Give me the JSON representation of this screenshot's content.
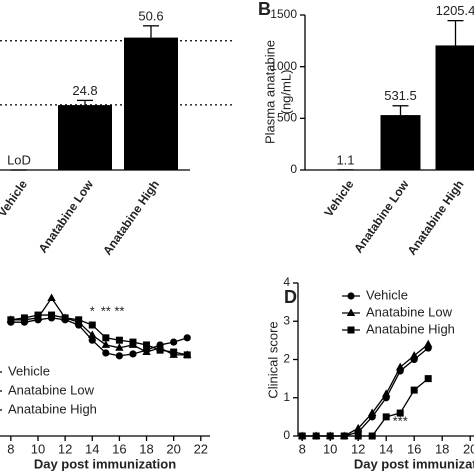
{
  "chart_data": [
    {
      "type": "bar",
      "categories": [
        "Vehicle",
        "Anatabine Low",
        "Anatabine High"
      ],
      "values": [
        0,
        24.8,
        50.6
      ],
      "errors": [
        0,
        1.8,
        4.5
      ],
      "value_labels": [
        "LoD",
        "24.8",
        "50.6"
      ],
      "ylim": [
        0,
        60
      ],
      "reference_lines": [
        49.4,
        24.9
      ],
      "color": "#000000"
    },
    {
      "type": "bar",
      "panel": "B",
      "categories": [
        "Vehicle",
        "Anatabine Low",
        "Anatabine High"
      ],
      "values": [
        1.1,
        531.5,
        1205.4
      ],
      "errors": [
        0.3,
        90,
        240
      ],
      "ylabel": [
        "Plasma anatabine",
        "(ng/mL)"
      ],
      "ylim": [
        0,
        1500
      ],
      "yticks": [
        0,
        500,
        1000,
        1500
      ],
      "color": "#000000"
    },
    {
      "type": "line",
      "x": [
        8,
        9,
        10,
        11,
        12,
        13,
        14,
        15,
        16,
        17,
        18,
        19,
        20,
        21
      ],
      "xlabel": "Day post immunization",
      "xlim": [
        7.2,
        22
      ],
      "xticks": [
        8,
        10,
        12,
        14,
        16,
        18,
        20,
        22
      ],
      "ylim": [
        75,
        110
      ],
      "series": [
        {
          "name": "Vehicle",
          "color": "#000000",
          "values": [
            99.0,
            99.0,
            99.5,
            99.9,
            99.5,
            98.4,
            95.2,
            92.5,
            91.9,
            92.3,
            93.1,
            94.2,
            94.8,
            95.7
          ]
        },
        {
          "name": "Anatabine Low",
          "color": "#000000",
          "values": [
            99.5,
            99.5,
            99.9,
            104.1,
            99.9,
            99.0,
            96.3,
            94.2,
            93.6,
            94.2,
            92.7,
            93.6,
            92.1,
            92.1
          ]
        },
        {
          "name": "Anatabine High",
          "color": "#000000",
          "values": [
            99.5,
            99.9,
            100.5,
            100.5,
            99.9,
            99.5,
            98.4,
            95.7,
            95.2,
            94.8,
            94.2,
            93.1,
            92.7,
            92.1
          ]
        }
      ],
      "annotations": [
        {
          "text": "*",
          "x": 14
        },
        {
          "text": "**",
          "x": 15
        },
        {
          "text": "**",
          "x": 16
        }
      ]
    },
    {
      "type": "line",
      "panel": "D",
      "x": [
        8,
        9,
        10,
        11,
        12,
        13,
        14,
        15,
        16,
        17
      ],
      "xlabel": "Day post immunization",
      "ylabel": "Clinical score",
      "xlim": [
        7.7,
        21
      ],
      "xticks": [
        8,
        10,
        12,
        14,
        16,
        18,
        20
      ],
      "ylim": [
        0,
        4
      ],
      "yticks": [
        0,
        1,
        2,
        3,
        4
      ],
      "series": [
        {
          "name": "Vehicle",
          "color": "#000000",
          "values": [
            0,
            0,
            0,
            0,
            0.1,
            0.5,
            1.0,
            1.7,
            2.0,
            2.3
          ]
        },
        {
          "name": "Anatabine Low",
          "color": "#000000",
          "values": [
            0,
            0,
            0,
            0,
            0.2,
            0.6,
            1.1,
            1.8,
            2.1,
            2.4
          ]
        },
        {
          "name": "Anatabine High",
          "color": "#000000",
          "values": [
            0,
            0,
            0,
            0,
            0,
            0,
            0.5,
            0.6,
            1.2,
            1.5
          ]
        }
      ],
      "annotations": [
        {
          "text": "***",
          "x": 15
        }
      ]
    }
  ]
}
